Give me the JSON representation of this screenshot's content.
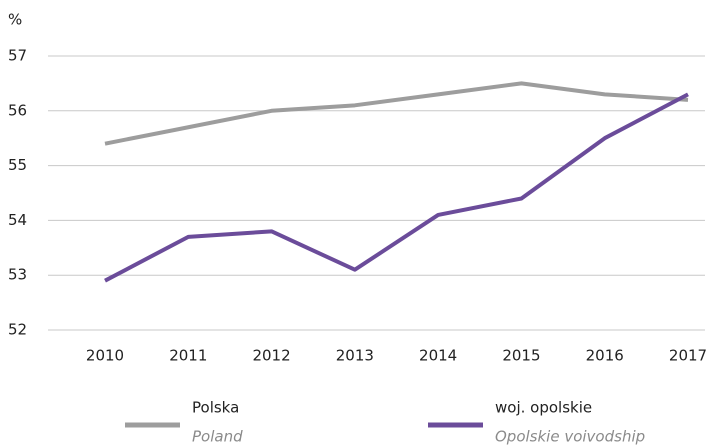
{
  "chart_data": {
    "type": "line",
    "ylabel": "%",
    "categories": [
      "2010",
      "2011",
      "2012",
      "2013",
      "2014",
      "2015",
      "2016",
      "2017"
    ],
    "series": [
      {
        "name": "Polska",
        "name_en": "Poland",
        "color": "#9d9d9d",
        "values": [
          55.4,
          55.7,
          56.0,
          56.1,
          56.3,
          56.5,
          56.3,
          56.2
        ]
      },
      {
        "name": "woj. opolskie",
        "name_en": "Opolskie voivodship",
        "color": "#6b4c9a",
        "values": [
          52.9,
          53.7,
          53.8,
          53.1,
          54.1,
          54.4,
          55.5,
          56.3
        ]
      }
    ],
    "ylim": [
      52,
      57
    ],
    "yticks": [
      52,
      53,
      54,
      55,
      56,
      57
    ],
    "grid": true,
    "legend": "bottom"
  }
}
